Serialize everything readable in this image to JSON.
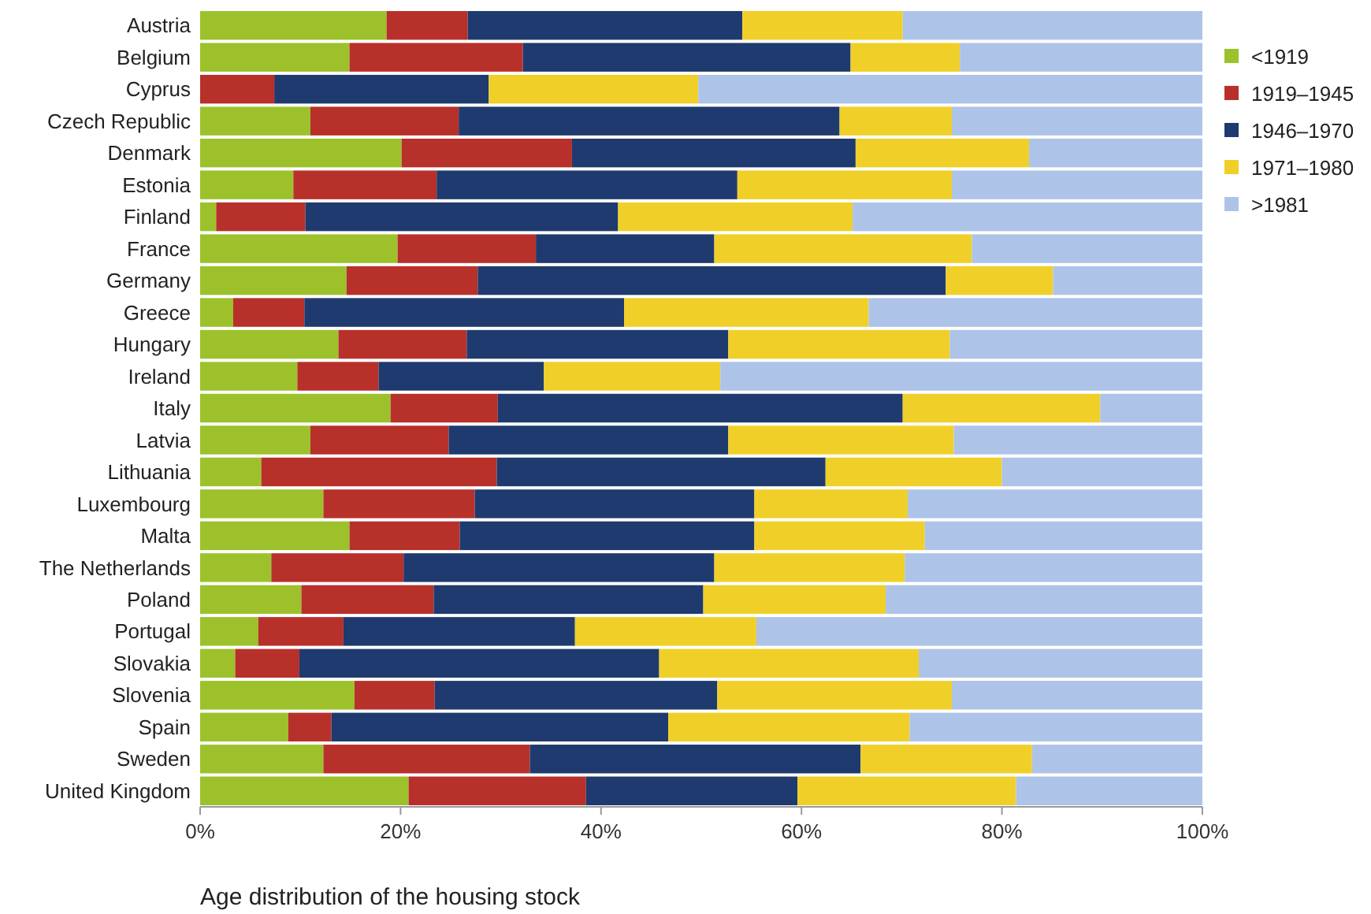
{
  "chart_data": {
    "type": "bar",
    "orientation": "horizontal",
    "stacked": true,
    "xlabel": "Age distribution of the housing stock",
    "categories": [
      "Austria",
      "Belgium",
      "Cyprus",
      "Czech Republic",
      "Denmark",
      "Estonia",
      "Finland",
      "France",
      "Germany",
      "Greece",
      "Hungary",
      "Ireland",
      "Italy",
      "Latvia",
      "Lithuania",
      "Luxembourg",
      "Malta",
      "The Netherlands",
      "Poland",
      "Portugal",
      "Slovakia",
      "Slovenia",
      "Spain",
      "Sweden",
      "United Kingdom"
    ],
    "series": [
      {
        "name": "<1919",
        "color": "#9dc12b",
        "values": [
          18.6,
          14.9,
          0,
          11.0,
          20.1,
          9.3,
          1.6,
          19.7,
          14.6,
          3.3,
          13.8,
          9.7,
          19.0,
          11.0,
          6.1,
          12.3,
          14.9,
          7.1,
          10.1,
          5.8,
          3.5,
          15.4,
          8.8,
          12.3,
          20.8
        ]
      },
      {
        "name": "1919–1945",
        "color": "#b8302a",
        "values": [
          8.1,
          17.3,
          7.4,
          14.8,
          17.0,
          14.3,
          8.9,
          13.8,
          13.1,
          7.1,
          12.8,
          8.1,
          10.7,
          13.8,
          23.5,
          15.1,
          11.0,
          13.2,
          13.2,
          8.5,
          6.4,
          8.0,
          4.3,
          20.6,
          17.7
        ]
      },
      {
        "name": "1946–1970",
        "color": "#1f3a6e",
        "values": [
          27.4,
          32.7,
          21.4,
          38.0,
          28.3,
          30.0,
          31.2,
          17.8,
          46.7,
          31.9,
          26.1,
          16.5,
          40.4,
          27.9,
          32.8,
          27.9,
          29.4,
          31.0,
          26.9,
          23.1,
          35.9,
          28.2,
          33.6,
          33.0,
          21.1
        ]
      },
      {
        "name": "1971–1980",
        "color": "#f0d028",
        "values": [
          16.0,
          10.9,
          20.9,
          11.2,
          17.3,
          21.4,
          23.4,
          25.7,
          10.7,
          24.4,
          22.1,
          17.6,
          19.7,
          22.5,
          17.6,
          15.3,
          17.0,
          19.0,
          18.2,
          18.1,
          25.9,
          23.4,
          24.1,
          17.1,
          21.8
        ]
      },
      {
        "name": ">1981",
        "color": "#aec3e8",
        "values": [
          29.9,
          24.2,
          50.3,
          25.0,
          17.3,
          25.0,
          34.9,
          23.0,
          14.9,
          33.3,
          25.2,
          48.1,
          10.2,
          24.8,
          20.0,
          29.4,
          27.7,
          29.7,
          31.6,
          44.5,
          28.3,
          25.0,
          29.2,
          17.0,
          18.6
        ]
      }
    ],
    "xlim": [
      0,
      100
    ],
    "xticks": [
      {
        "value": 0,
        "label": "0%"
      },
      {
        "value": 20,
        "label": "20%"
      },
      {
        "value": 40,
        "label": "40%"
      },
      {
        "value": 60,
        "label": "60%"
      },
      {
        "value": 80,
        "label": "80%"
      },
      {
        "value": 100,
        "label": "100%"
      }
    ],
    "grid": false,
    "legend": "right"
  }
}
